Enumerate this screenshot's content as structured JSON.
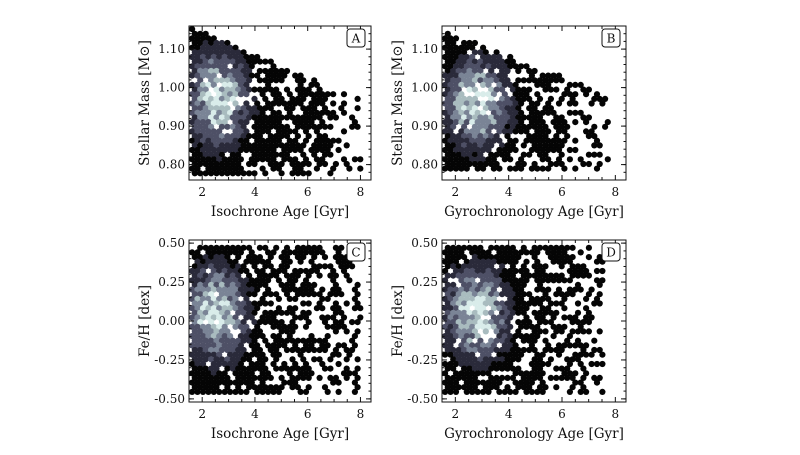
{
  "chart_data": [
    {
      "type": "heatmap",
      "panel_label": "A",
      "xlabel": "Isochrone Age [Gyr]",
      "ylabel": "Stellar Mass [M⊙]",
      "xlim": [
        1.5,
        8.4
      ],
      "ylim": [
        0.76,
        1.16
      ],
      "xticks": [
        2,
        4,
        6,
        8
      ],
      "yticks": [
        0.8,
        0.9,
        1.0,
        1.1
      ],
      "ytick_labels": [
        "0.80",
        "0.90",
        "1.00",
        "1.10"
      ],
      "x_min_data": 1.5,
      "x_max_data": 8.0,
      "y_min_data": 0.77,
      "y_max_data": 1.16,
      "peak": {
        "x": 2.6,
        "y": 0.97
      },
      "upper_envelope": {
        "y_at_xmin": 1.16,
        "y_at_xmax": 0.97
      },
      "colormap": [
        "#050505",
        "#2a2a3a",
        "#4e5066",
        "#7a8496",
        "#a9bcbf",
        "#d9ecea"
      ]
    },
    {
      "type": "heatmap",
      "panel_label": "B",
      "xlabel": "Gyrochronology Age [Gyr]",
      "ylabel": "Stellar Mass [M⊙]",
      "xlim": [
        1.5,
        8.4
      ],
      "ylim": [
        0.76,
        1.16
      ],
      "xticks": [
        2,
        4,
        6,
        8
      ],
      "yticks": [
        0.8,
        0.9,
        1.0,
        1.1
      ],
      "ytick_labels": [
        "0.80",
        "0.90",
        "1.00",
        "1.10"
      ],
      "x_min_data": 1.5,
      "x_max_data": 7.8,
      "y_min_data": 0.78,
      "y_max_data": 1.15,
      "peak": {
        "x": 2.8,
        "y": 0.96
      },
      "upper_envelope": {
        "y_at_xmin": 1.15,
        "y_at_xmax": 0.98
      },
      "colormap": [
        "#050505",
        "#2a2a3a",
        "#4e5066",
        "#7a8496",
        "#a9bcbf",
        "#d9ecea"
      ]
    },
    {
      "type": "heatmap",
      "panel_label": "C",
      "xlabel": "Isochrone Age [Gyr]",
      "ylabel": "Fe/H [dex]",
      "xlim": [
        1.5,
        8.4
      ],
      "ylim": [
        -0.52,
        0.52
      ],
      "xticks": [
        2,
        4,
        6,
        8
      ],
      "yticks": [
        -0.5,
        -0.25,
        0.0,
        0.25,
        0.5
      ],
      "ytick_labels": [
        "-0.50",
        "-0.25",
        "0.00",
        "0.25",
        "0.50"
      ],
      "x_min_data": 1.5,
      "x_max_data": 8.0,
      "y_min_data": -0.48,
      "y_max_data": 0.48,
      "peak": {
        "x": 2.5,
        "y": 0.05
      },
      "colormap": [
        "#050505",
        "#2a2a3a",
        "#4e5066",
        "#7a8496",
        "#a9bcbf",
        "#d9ecea"
      ]
    },
    {
      "type": "heatmap",
      "panel_label": "D",
      "xlabel": "Gyrochronology Age [Gyr]",
      "ylabel": "Fe/H [dex]",
      "xlim": [
        1.5,
        8.4
      ],
      "ylim": [
        -0.52,
        0.52
      ],
      "xticks": [
        2,
        4,
        6,
        8
      ],
      "yticks": [
        -0.5,
        -0.25,
        0.0,
        0.25,
        0.5
      ],
      "ytick_labels": [
        "-0.50",
        "-0.25",
        "0.00",
        "0.25",
        "0.50"
      ],
      "x_min_data": 1.5,
      "x_max_data": 7.6,
      "y_min_data": -0.47,
      "y_max_data": 0.48,
      "peak": {
        "x": 2.8,
        "y": 0.05
      },
      "colormap": [
        "#050505",
        "#2a2a3a",
        "#4e5066",
        "#7a8496",
        "#a9bcbf",
        "#d9ecea"
      ]
    }
  ]
}
